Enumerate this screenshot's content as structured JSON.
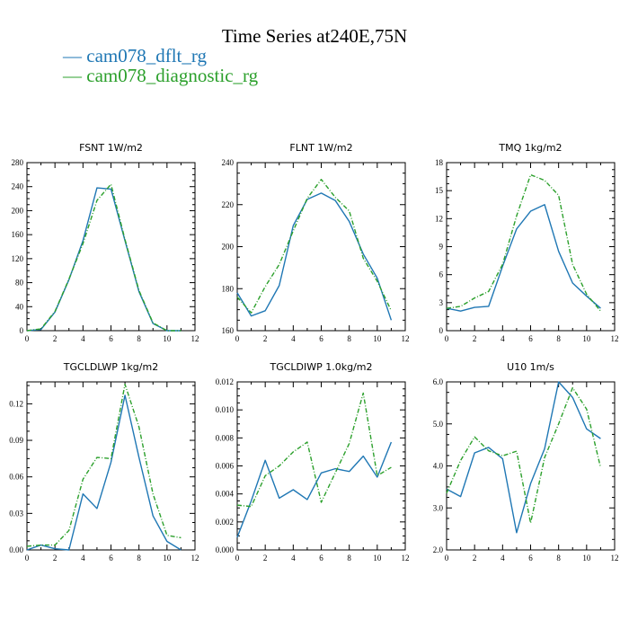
{
  "title": "Time Series at240E,75N",
  "legend": [
    {
      "label": "— cam078_dflt_rg",
      "color": "#1f77b4"
    },
    {
      "label": "— cam078_diagnostic_rg",
      "color": "#2ca02c"
    }
  ],
  "colors": {
    "dflt": "#1f77b4",
    "diagnostic": "#2ca02c"
  },
  "chart_data": [
    {
      "type": "line",
      "title": "FSNT   1W/m2",
      "x": [
        0,
        1,
        2,
        3,
        4,
        5,
        6,
        7,
        8,
        9,
        10,
        11
      ],
      "xlim": [
        0,
        12
      ],
      "xticks": [
        "0",
        "2",
        "4",
        "6",
        "8",
        "10",
        "12"
      ],
      "ylim": [
        0,
        280
      ],
      "yticks": [
        "0",
        "40",
        "80",
        "120",
        "160",
        "200",
        "240",
        "280"
      ],
      "series": [
        {
          "name": "cam078_dflt_rg",
          "values": [
            0,
            2,
            31,
            85,
            150,
            238,
            236,
            150,
            65,
            12,
            0,
            0
          ]
        },
        {
          "name": "cam078_diagnostic_rg",
          "values": [
            0,
            3,
            32,
            86,
            145,
            217,
            244,
            152,
            67,
            13,
            0,
            0
          ]
        }
      ]
    },
    {
      "type": "line",
      "title": "FLNT   1W/m2",
      "x": [
        0,
        1,
        2,
        3,
        4,
        5,
        6,
        7,
        8,
        9,
        10,
        11
      ],
      "xlim": [
        0,
        12
      ],
      "xticks": [
        "0",
        "2",
        "4",
        "6",
        "8",
        "10",
        "12"
      ],
      "ylim": [
        160,
        240
      ],
      "yticks": [
        "160",
        "180",
        "200",
        "220",
        "240"
      ],
      "series": [
        {
          "name": "cam078_dflt_rg",
          "values": [
            178,
            167,
            169.5,
            181.5,
            210,
            222.5,
            225.5,
            222,
            212,
            196.5,
            185,
            165
          ]
        },
        {
          "name": "cam078_diagnostic_rg",
          "values": [
            176,
            168.5,
            181,
            191.5,
            207.5,
            223,
            232,
            223.5,
            217,
            194.5,
            183.5,
            169.5
          ]
        }
      ]
    },
    {
      "type": "line",
      "title": "TMQ   1kg/m2",
      "x": [
        0,
        1,
        2,
        3,
        4,
        5,
        6,
        7,
        8,
        9,
        10,
        11
      ],
      "xlim": [
        0,
        12
      ],
      "xticks": [
        "0",
        "2",
        "4",
        "6",
        "8",
        "10",
        "12"
      ],
      "ylim": [
        0,
        18
      ],
      "yticks": [
        "0",
        "3",
        "6",
        "9",
        "12",
        "15",
        "18"
      ],
      "series": [
        {
          "name": "cam078_dflt_rg",
          "values": [
            2.4,
            2.1,
            2.5,
            2.6,
            6.9,
            10.9,
            12.8,
            13.5,
            8.5,
            5.1,
            3.7,
            2.4
          ]
        },
        {
          "name": "cam078_diagnostic_rg",
          "values": [
            2.4,
            2.6,
            3.5,
            4.2,
            7.1,
            12.3,
            16.7,
            16.1,
            14.5,
            7.1,
            3.9,
            2.1
          ]
        }
      ]
    },
    {
      "type": "line",
      "title": "TGCLDLWP   1kg/m2",
      "x": [
        0,
        1,
        2,
        3,
        4,
        5,
        6,
        7,
        8,
        9,
        10,
        11
      ],
      "xlim": [
        0,
        12
      ],
      "xticks": [
        "0",
        "2",
        "4",
        "6",
        "8",
        "10",
        "12"
      ],
      "ylim": [
        0,
        0.138
      ],
      "yticks": [
        "0.00",
        "0.03",
        "0.06",
        "0.09",
        "0.12"
      ],
      "series": [
        {
          "name": "cam078_dflt_rg",
          "values": [
            0,
            0.004,
            0.001,
            0,
            0.046,
            0.034,
            0.072,
            0.127,
            0.076,
            0.028,
            0.007,
            0
          ]
        },
        {
          "name": "cam078_diagnostic_rg",
          "values": [
            0.003,
            0.004,
            0.004,
            0.016,
            0.058,
            0.076,
            0.075,
            0.136,
            0.101,
            0.046,
            0.012,
            0.01
          ]
        }
      ]
    },
    {
      "type": "line",
      "title": "TGCLDIWP   1.0kg/m2",
      "x": [
        0,
        1,
        2,
        3,
        4,
        5,
        6,
        7,
        8,
        9,
        10,
        11
      ],
      "xlim": [
        0,
        12
      ],
      "xticks": [
        "0",
        "2",
        "4",
        "6",
        "8",
        "10",
        "12"
      ],
      "ylim": [
        0,
        0.012
      ],
      "yticks": [
        "0.000",
        "0.002",
        "0.004",
        "0.006",
        "0.008",
        "0.010",
        "0.012"
      ],
      "series": [
        {
          "name": "cam078_dflt_rg",
          "values": [
            0.0009,
            0.0035,
            0.0064,
            0.0037,
            0.0043,
            0.0036,
            0.0055,
            0.0058,
            0.0056,
            0.0067,
            0.0052,
            0.0077
          ]
        },
        {
          "name": "cam078_diagnostic_rg",
          "values": [
            0.0032,
            0.0031,
            0.0053,
            0.006,
            0.007,
            0.0077,
            0.0034,
            0.0055,
            0.0076,
            0.0112,
            0.0053,
            0.0059
          ]
        }
      ]
    },
    {
      "type": "line",
      "title": "U10   1m/s",
      "x": [
        0,
        1,
        2,
        3,
        4,
        5,
        6,
        7,
        8,
        9,
        10,
        11
      ],
      "xlim": [
        0,
        12
      ],
      "xticks": [
        "0",
        "2",
        "4",
        "6",
        "8",
        "10",
        "12"
      ],
      "ylim": [
        2,
        6
      ],
      "yticks": [
        "2.0",
        "3.0",
        "4.0",
        "5.0",
        "6.0"
      ],
      "series": [
        {
          "name": "cam078_dflt_rg",
          "values": [
            3.45,
            3.27,
            4.31,
            4.44,
            4.17,
            2.41,
            3.58,
            4.41,
            6,
            5.63,
            4.88,
            4.65
          ]
        },
        {
          "name": "cam078_diagnostic_rg",
          "values": [
            3.35,
            4.13,
            4.69,
            4.36,
            4.24,
            4.35,
            2.64,
            4.2,
            5,
            5.86,
            5.35,
            3.96
          ]
        }
      ]
    }
  ]
}
